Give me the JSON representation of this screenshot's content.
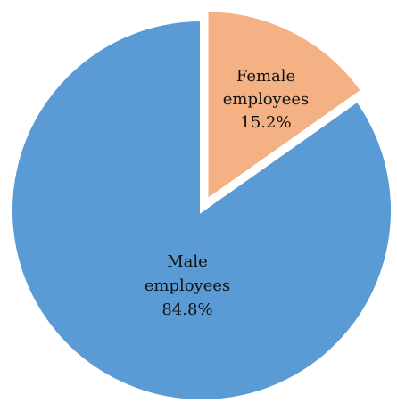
{
  "chart_data": {
    "type": "pie",
    "title": "",
    "slices": [
      {
        "label_lines": [
          "Female",
          "employees"
        ],
        "value_label": "15.2%",
        "value": 15.2,
        "color": "#F4B183",
        "exploded": true
      },
      {
        "label_lines": [
          "Male",
          "employees"
        ],
        "value_label": "84.8%",
        "value": 84.8,
        "color": "#5B9BD5",
        "exploded": false
      }
    ],
    "start_angle_deg": 0,
    "direction": "clockwise",
    "slice_border_color": "#ffffff"
  }
}
